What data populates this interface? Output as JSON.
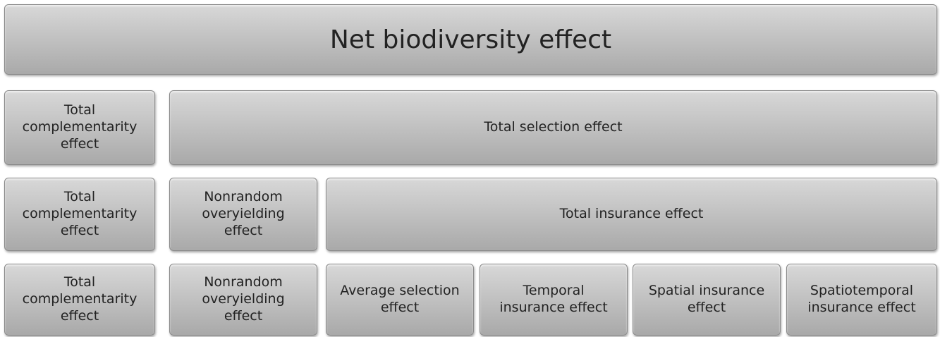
{
  "rows": [
    [
      "Net biodiversity effect"
    ],
    [
      "Total complementarity effect",
      "Total selection effect"
    ],
    [
      "Total complementarity effect",
      "Nonrandom overyielding effect",
      "Total insurance effect"
    ],
    [
      "Total complementarity effect",
      "Nonrandom overyielding effect",
      "Average selection effect",
      "Temporal insurance effect",
      "Spatial insurance effect",
      "Spatiotemporal insurance effect"
    ]
  ]
}
